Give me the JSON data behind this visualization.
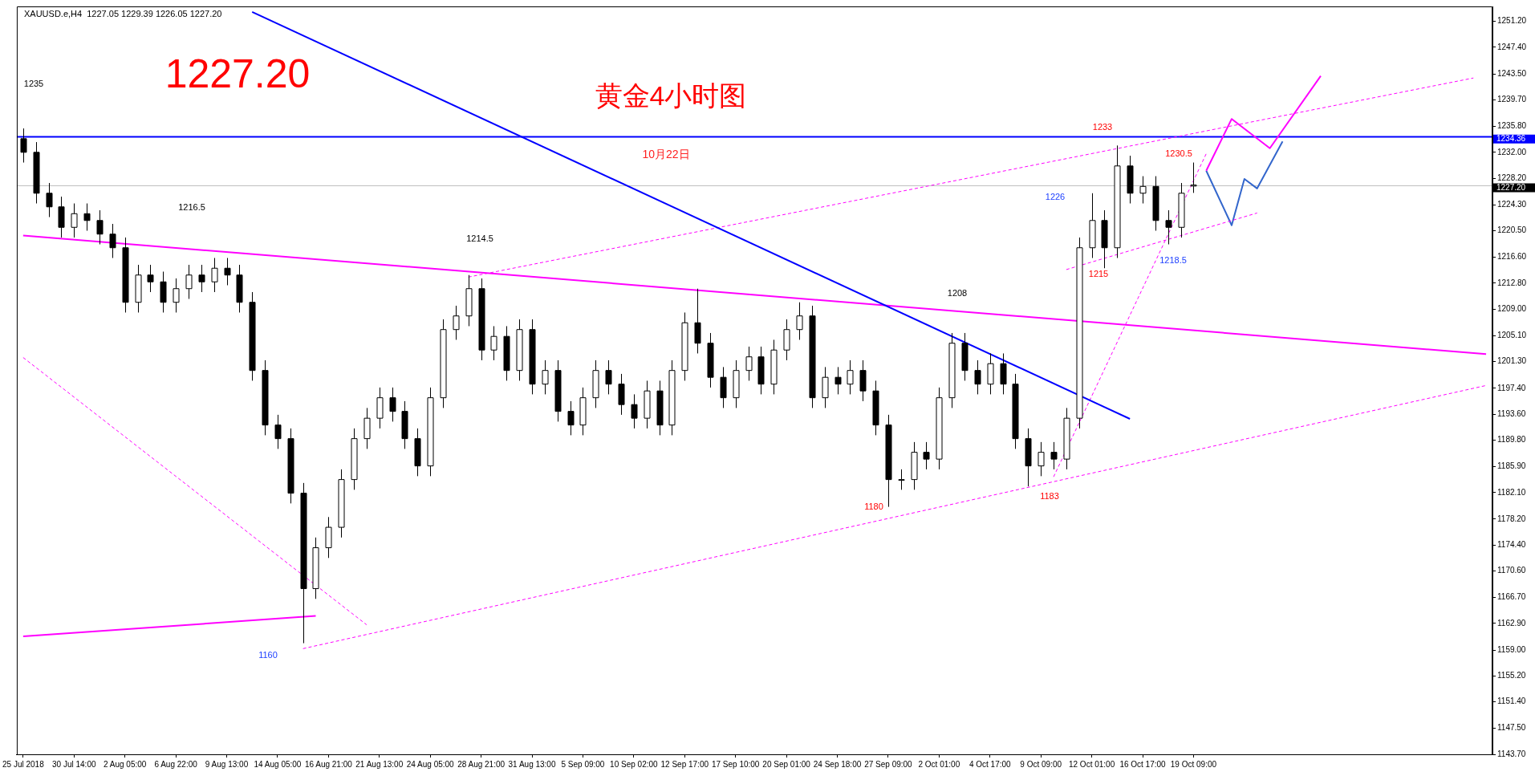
{
  "chart_data": {
    "type": "candlestick",
    "title": "黄金4小时图",
    "color": "#000000",
    "colors": [
      "#000000",
      "#000000",
      "#000000",
      "#000000",
      "#ffffff",
      "#000000",
      "#000000",
      "#000000",
      "#000000",
      "#ffffff",
      "#000000",
      "#000000",
      "#ffffff",
      "#ffffff",
      "#000000",
      "#ffffff",
      "#000000",
      "#000000",
      "#000000",
      "#000000",
      "#000000",
      "#000000",
      "#000000",
      "#ffffff",
      "#ffffff",
      "#ffffff",
      "#ffffff",
      "#ffffff",
      "#ffffff",
      "#000000",
      "#000000",
      "#000000",
      "#ffffff",
      "#ffffff",
      "#ffffff",
      "#ffffff",
      "#000000",
      "#ffffff",
      "#000000",
      "#ffffff",
      "#000000",
      "#ffffff",
      "#000000",
      "#000000",
      "#ffffff",
      "#ffffff",
      "#000000",
      "#000000",
      "#000000",
      "#ffffff",
      "#000000",
      "#ffffff",
      "#ffffff",
      "#000000",
      "#000000",
      "#000000",
      "#ffffff",
      "#ffffff",
      "#000000",
      "#ffffff",
      "#ffffff",
      "#ffffff",
      "#000000",
      "#ffffff",
      "#000000",
      "#ffffff",
      "#000000",
      "#000000",
      "#000000",
      "#ffffff",
      "#ffffff",
      "#000000",
      "#ffffff",
      "#ffffff",
      "#000000",
      "#000000",
      "#ffffff",
      "#000000",
      "#000000",
      "#000000",
      "#ffffff",
      "#000000",
      "#ffffff",
      "#ffffff",
      "#ffffff",
      "#000000",
      "#ffffff",
      "#000000",
      "#ffffff",
      "#000000",
      "#000000",
      "#ffffff",
      "#ffffff",
      null,
      null,
      null,
      null,
      null,
      null,
      null,
      null,
      null,
      null,
      null,
      null,
      null,
      null,
      null,
      null,
      null,
      null,
      null,
      null,
      null,
      null,
      null
    ],
    "categories": [
      "25 Jul 2018",
      null,
      null,
      null,
      "30 Jul 14:00",
      null,
      null,
      null,
      "2 Aug 05:00",
      null,
      null,
      null,
      "6 Aug 22:00",
      null,
      null,
      null,
      "9 Aug 13:00",
      null,
      null,
      null,
      "14 Aug 05:00",
      null,
      null,
      null,
      "16 Aug 21:00",
      null,
      null,
      null,
      "21 Aug 13:00",
      null,
      null,
      null,
      "24 Aug 05:00",
      null,
      null,
      null,
      "28 Aug 21:00",
      null,
      null,
      null,
      "31 Aug 13:00",
      null,
      null,
      null,
      "5 Sep 09:00",
      null,
      null,
      null,
      "10 Sep 02:00",
      null,
      null,
      null,
      "12 Sep 17:00",
      null,
      null,
      null,
      "17 Sep 10:00",
      null,
      null,
      null,
      "20 Sep 01:00",
      null,
      null,
      null,
      "24 Sep 18:00",
      null,
      null,
      null,
      "27 Sep 09:00",
      null,
      null,
      null,
      "2 Oct 01:00",
      null,
      null,
      null,
      "4 Oct 17:00",
      null,
      null,
      null,
      "9 Oct 09:00",
      null,
      null,
      null,
      "12 Oct 01:00",
      null,
      null,
      null,
      "16 Oct 17:00",
      null,
      null,
      null,
      "19 Oct 09:00",
      null,
      null,
      null,
      null,
      null,
      null,
      null,
      null,
      null,
      null,
      null,
      null,
      null,
      null,
      null,
      null,
      null,
      null,
      null,
      null,
      null,
      null,
      null
    ],
    "ohlc": [
      [
        1234,
        1235.5,
        1230.5,
        1232
      ],
      [
        1232,
        1233.5,
        1224.5,
        1226
      ],
      [
        1226,
        1227.5,
        1222.5,
        1224
      ],
      [
        1224,
        1225.5,
        1219.5,
        1221
      ],
      [
        1221,
        1224.5,
        1219.5,
        1223
      ],
      [
        1223,
        1224.5,
        1220.5,
        1222
      ],
      [
        1222,
        1223.5,
        1218.5,
        1220
      ],
      [
        1220,
        1221.5,
        1216.5,
        1218
      ],
      [
        1218,
        1219.5,
        1208.5,
        1210
      ],
      [
        1210,
        1215.5,
        1208.5,
        1214
      ],
      [
        1214,
        1215.5,
        1211.5,
        1213
      ],
      [
        1213,
        1214.5,
        1208.5,
        1210
      ],
      [
        1210,
        1213.5,
        1208.5,
        1212
      ],
      [
        1212,
        1215.5,
        1210.5,
        1214
      ],
      [
        1214,
        1215.5,
        1211.5,
        1213
      ],
      [
        1213,
        1216.5,
        1211.5,
        1215
      ],
      [
        1215,
        1216.5,
        1212.5,
        1214
      ],
      [
        1214,
        1215.5,
        1208.5,
        1210
      ],
      [
        1210,
        1211.5,
        1198.5,
        1200
      ],
      [
        1200,
        1201.5,
        1190.5,
        1192
      ],
      [
        1192,
        1193.5,
        1188.5,
        1190
      ],
      [
        1190,
        1191.5,
        1180.5,
        1182
      ],
      [
        1182,
        1183.5,
        1160,
        1168
      ],
      [
        1168,
        1175.5,
        1166.5,
        1174
      ],
      [
        1174,
        1178.5,
        1172.5,
        1177
      ],
      [
        1177,
        1185.5,
        1175.5,
        1184
      ],
      [
        1184,
        1191.5,
        1182.5,
        1190
      ],
      [
        1190,
        1194.5,
        1188.5,
        1193
      ],
      [
        1193,
        1197.5,
        1191.5,
        1196
      ],
      [
        1196,
        1197.5,
        1192.5,
        1194
      ],
      [
        1194,
        1195.5,
        1188.5,
        1190
      ],
      [
        1190,
        1191.5,
        1184.5,
        1186
      ],
      [
        1186,
        1197.5,
        1184.5,
        1196
      ],
      [
        1196,
        1207.5,
        1194.5,
        1206
      ],
      [
        1206,
        1209.5,
        1204.5,
        1208
      ],
      [
        1208,
        1214,
        1206.5,
        1212
      ],
      [
        1212,
        1213.5,
        1201.5,
        1203
      ],
      [
        1203,
        1206.5,
        1201.5,
        1205
      ],
      [
        1205,
        1206.5,
        1198.5,
        1200
      ],
      [
        1200,
        1207.5,
        1198.5,
        1206
      ],
      [
        1206,
        1207.5,
        1196.5,
        1198
      ],
      [
        1198,
        1201.5,
        1196.5,
        1200
      ],
      [
        1200,
        1201.5,
        1192.5,
        1194
      ],
      [
        1194,
        1195.5,
        1190.5,
        1192
      ],
      [
        1192,
        1197.5,
        1190.5,
        1196
      ],
      [
        1196,
        1201.5,
        1194.5,
        1200
      ],
      [
        1200,
        1201.5,
        1196.5,
        1198
      ],
      [
        1198,
        1199.5,
        1193.5,
        1195
      ],
      [
        1195,
        1196.5,
        1191.5,
        1193
      ],
      [
        1193,
        1198.5,
        1191.5,
        1197
      ],
      [
        1197,
        1198.5,
        1190.5,
        1192
      ],
      [
        1192,
        1201.5,
        1190.5,
        1200
      ],
      [
        1200,
        1208.5,
        1198.5,
        1207
      ],
      [
        1207,
        1212,
        1202.5,
        1204
      ],
      [
        1204,
        1205.5,
        1197.5,
        1199
      ],
      [
        1199,
        1200.5,
        1194.5,
        1196
      ],
      [
        1196,
        1201.5,
        1194.5,
        1200
      ],
      [
        1200,
        1203.5,
        1198.5,
        1202
      ],
      [
        1202,
        1203.5,
        1196.5,
        1198
      ],
      [
        1198,
        1204.5,
        1196.5,
        1203
      ],
      [
        1203,
        1207.5,
        1201.5,
        1206
      ],
      [
        1206,
        1210,
        1204.5,
        1208
      ],
      [
        1208,
        1209.5,
        1194.5,
        1196
      ],
      [
        1196,
        1200.5,
        1194.5,
        1199
      ],
      [
        1199,
        1200.5,
        1196.5,
        1198
      ],
      [
        1198,
        1201.5,
        1196.5,
        1200
      ],
      [
        1200,
        1201.5,
        1195.5,
        1197
      ],
      [
        1197,
        1198.5,
        1190.5,
        1192
      ],
      [
        1192,
        1193.5,
        1180,
        1184
      ],
      [
        1184,
        1185.5,
        1182.5,
        1184
      ],
      [
        1184,
        1189.5,
        1182.5,
        1188
      ],
      [
        1188,
        1189.5,
        1185.5,
        1187
      ],
      [
        1187,
        1197.5,
        1185.5,
        1196
      ],
      [
        1196,
        1205.5,
        1194.5,
        1204
      ],
      [
        1204,
        1205.5,
        1198.5,
        1200
      ],
      [
        1200,
        1201.5,
        1196.5,
        1198
      ],
      [
        1198,
        1202.5,
        1196.5,
        1201
      ],
      [
        1201,
        1202.5,
        1196.5,
        1198
      ],
      [
        1198,
        1199.5,
        1188.5,
        1190
      ],
      [
        1190,
        1191.5,
        1183,
        1186
      ],
      [
        1186,
        1189.5,
        1184.5,
        1188
      ],
      [
        1188,
        1189.5,
        1185.5,
        1187
      ],
      [
        1187,
        1194.5,
        1185.5,
        1193
      ],
      [
        1193,
        1219.5,
        1191.5,
        1218
      ],
      [
        1218,
        1226,
        1216.5,
        1222
      ],
      [
        1222,
        1223.5,
        1215,
        1218
      ],
      [
        1218,
        1233,
        1216.5,
        1230
      ],
      [
        1230,
        1231.5,
        1224.5,
        1226
      ],
      [
        1226,
        1228.5,
        1224.5,
        1227
      ],
      [
        1227,
        1228.5,
        1220.5,
        1222
      ],
      [
        1222,
        1223.5,
        1218.5,
        1221
      ],
      [
        1221,
        1227.5,
        1219.5,
        1226
      ],
      [
        1227.05,
        1230.5,
        1226.05,
        1227.2
      ],
      null,
      null,
      null,
      null,
      null,
      null,
      null,
      null,
      null,
      null,
      null,
      null,
      null,
      null,
      null,
      null,
      null,
      null,
      null,
      null,
      null,
      null,
      null
    ],
    "series": [
      {
        "type": "line",
        "color": "#0000ff",
        "line_style": "solid",
        "values": [
          null,
          null,
          null,
          null,
          null,
          null,
          null,
          null,
          null,
          null,
          null,
          null,
          null,
          null,
          null,
          null,
          null,
          null,
          1252.6,
          null,
          null,
          null,
          null,
          null,
          null,
          null,
          null,
          null,
          null,
          null,
          null,
          null,
          null,
          null,
          null,
          null,
          null,
          null,
          null,
          null,
          null,
          null,
          null,
          null,
          null,
          null,
          null,
          null,
          null,
          null,
          null,
          null,
          null,
          null,
          null,
          null,
          null,
          null,
          null,
          null,
          null,
          null,
          null,
          null,
          null,
          null,
          null,
          null,
          null,
          null,
          null,
          null,
          null,
          null,
          null,
          null,
          null,
          null,
          null,
          null,
          null,
          null,
          null,
          null,
          null,
          null,
          null,
          1192.9,
          null,
          null,
          null,
          null,
          null,
          null,
          null,
          null,
          null,
          null,
          null,
          null,
          null,
          null,
          null,
          null,
          null,
          null,
          null,
          null,
          null,
          null,
          null,
          null,
          null,
          null,
          null,
          null
        ]
      },
      {
        "type": "line",
        "color": "#ff00ff",
        "line_style": "solid",
        "values": [
          1219.8,
          null,
          null,
          null,
          null,
          null,
          null,
          null,
          null,
          null,
          null,
          null,
          null,
          null,
          null,
          null,
          null,
          null,
          null,
          null,
          null,
          null,
          null,
          null,
          null,
          null,
          null,
          null,
          null,
          null,
          null,
          null,
          null,
          null,
          null,
          null,
          null,
          null,
          null,
          null,
          null,
          null,
          null,
          null,
          null,
          null,
          null,
          null,
          null,
          null,
          null,
          null,
          null,
          null,
          null,
          null,
          null,
          null,
          null,
          null,
          null,
          null,
          null,
          null,
          null,
          null,
          null,
          null,
          null,
          null,
          null,
          null,
          null,
          null,
          null,
          null,
          null,
          null,
          null,
          null,
          null,
          null,
          null,
          null,
          null,
          null,
          null,
          null,
          null,
          null,
          null,
          null,
          null,
          null,
          null,
          null,
          null,
          null,
          null,
          null,
          null,
          null,
          null,
          null,
          null,
          null,
          null,
          null,
          null,
          null,
          null,
          null,
          null,
          null,
          null,
          1202.4
        ]
      },
      {
        "type": "line",
        "color": "#ff00ff",
        "line_style": "solid",
        "values": [
          1161.0,
          null,
          null,
          null,
          null,
          null,
          null,
          null,
          null,
          null,
          null,
          null,
          null,
          null,
          null,
          null,
          null,
          null,
          null,
          null,
          null,
          null,
          null,
          1164.0,
          null,
          null,
          null,
          null,
          null,
          null,
          null,
          null,
          null,
          null,
          null,
          null,
          null,
          null,
          null,
          null,
          null,
          null,
          null,
          null,
          null,
          null,
          null,
          null,
          null,
          null,
          null,
          null,
          null,
          null,
          null,
          null,
          null,
          null,
          null,
          null,
          null,
          null,
          null,
          null,
          null,
          null,
          null,
          null,
          null,
          null,
          null,
          null,
          null,
          null,
          null,
          null,
          null,
          null,
          null,
          null,
          null,
          null,
          null,
          null,
          null,
          null,
          null,
          null,
          null,
          null,
          null,
          null,
          null,
          null,
          null,
          null,
          null,
          null,
          null,
          null,
          null,
          null,
          null,
          null,
          null,
          null,
          null,
          null,
          null,
          null,
          null,
          null,
          null,
          null,
          null,
          null
        ]
      },
      {
        "type": "line",
        "color": "#ff00ff",
        "line_style": "dashed",
        "values": [
          null,
          null,
          null,
          null,
          null,
          null,
          null,
          null,
          null,
          null,
          null,
          null,
          null,
          null,
          null,
          null,
          null,
          null,
          null,
          null,
          null,
          null,
          1159.2,
          null,
          null,
          null,
          null,
          null,
          null,
          null,
          null,
          null,
          null,
          null,
          null,
          null,
          null,
          null,
          null,
          null,
          null,
          null,
          null,
          null,
          null,
          null,
          null,
          null,
          null,
          null,
          null,
          null,
          null,
          null,
          null,
          null,
          null,
          null,
          null,
          null,
          null,
          null,
          null,
          null,
          null,
          null,
          null,
          null,
          null,
          null,
          null,
          null,
          null,
          null,
          null,
          null,
          null,
          null,
          null,
          null,
          null,
          null,
          null,
          null,
          null,
          null,
          null,
          null,
          null,
          null,
          null,
          null,
          null,
          null,
          null,
          null,
          null,
          null,
          null,
          null,
          null,
          null,
          null,
          null,
          null,
          null,
          null,
          null,
          null,
          null,
          null,
          null,
          null,
          null,
          null,
          1197.8
        ]
      },
      {
        "type": "line",
        "color": "#ff00ff",
        "line_style": "dashed",
        "values": [
          null,
          null,
          null,
          null,
          null,
          null,
          null,
          null,
          null,
          null,
          null,
          null,
          null,
          null,
          null,
          null,
          null,
          null,
          null,
          null,
          null,
          null,
          null,
          null,
          null,
          null,
          null,
          null,
          null,
          null,
          null,
          null,
          null,
          null,
          null,
          1213.7,
          null,
          null,
          null,
          null,
          null,
          null,
          null,
          null,
          null,
          null,
          null,
          null,
          null,
          null,
          null,
          null,
          null,
          null,
          null,
          null,
          null,
          null,
          null,
          null,
          null,
          null,
          null,
          null,
          null,
          null,
          null,
          null,
          null,
          null,
          null,
          null,
          null,
          null,
          null,
          null,
          null,
          null,
          null,
          null,
          null,
          null,
          null,
          null,
          null,
          null,
          null,
          null,
          null,
          null,
          null,
          null,
          null,
          null,
          null,
          null,
          null,
          null,
          null,
          null,
          null,
          null,
          null,
          null,
          null,
          null,
          null,
          null,
          null,
          null,
          null,
          null,
          null,
          null,
          1242.9,
          null
        ]
      },
      {
        "type": "line",
        "color": "#ff00ff",
        "line_style": "dashed",
        "values": [
          1201.9,
          null,
          null,
          null,
          null,
          null,
          null,
          null,
          null,
          null,
          null,
          null,
          null,
          null,
          null,
          null,
          null,
          null,
          null,
          null,
          null,
          null,
          null,
          null,
          null,
          null,
          null,
          1162.7,
          null,
          null,
          null,
          null,
          null,
          null,
          null,
          null,
          null,
          null,
          null,
          null,
          null,
          null,
          null,
          null,
          null,
          null,
          null,
          null,
          null,
          null,
          null,
          null,
          null,
          null,
          null,
          null,
          null,
          null,
          null,
          null,
          null,
          null,
          null,
          null,
          null,
          null,
          null,
          null,
          null,
          null,
          null,
          null,
          null,
          null,
          null,
          null,
          null,
          null,
          null,
          null,
          null,
          null,
          null,
          null,
          null,
          null,
          null,
          null,
          null,
          null,
          null,
          null,
          null,
          null,
          null,
          null,
          null,
          null,
          null,
          null,
          null,
          null,
          null,
          null,
          null,
          null,
          null,
          null,
          null,
          null,
          null,
          null,
          null,
          null,
          null,
          null
        ]
      },
      {
        "type": "line",
        "color": "#ff00ff",
        "line_style": "dashed",
        "values": [
          null,
          null,
          null,
          null,
          null,
          null,
          null,
          null,
          null,
          null,
          null,
          null,
          null,
          null,
          null,
          null,
          null,
          null,
          null,
          null,
          null,
          null,
          null,
          null,
          null,
          null,
          null,
          null,
          null,
          null,
          null,
          null,
          null,
          null,
          null,
          null,
          null,
          null,
          null,
          null,
          null,
          null,
          null,
          null,
          null,
          null,
          null,
          null,
          null,
          null,
          null,
          null,
          null,
          null,
          null,
          null,
          null,
          null,
          null,
          null,
          null,
          null,
          null,
          null,
          null,
          null,
          null,
          null,
          null,
          null,
          null,
          null,
          null,
          null,
          null,
          null,
          null,
          null,
          null,
          null,
          null,
          1184.4,
          null,
          null,
          null,
          null,
          null,
          null,
          null,
          null,
          null,
          null,
          null,
          1231.8,
          null,
          null,
          null,
          null,
          null,
          null,
          null,
          null,
          null,
          null,
          null,
          null,
          null,
          null,
          null,
          null,
          null,
          null,
          null,
          null,
          null,
          null
        ]
      },
      {
        "type": "line",
        "color": "#ff00ff",
        "line_style": "dashed",
        "values": [
          null,
          null,
          null,
          null,
          null,
          null,
          null,
          null,
          null,
          null,
          null,
          null,
          null,
          null,
          null,
          null,
          null,
          null,
          null,
          null,
          null,
          null,
          null,
          null,
          null,
          null,
          null,
          null,
          null,
          null,
          null,
          null,
          null,
          null,
          null,
          null,
          null,
          null,
          null,
          null,
          null,
          null,
          null,
          null,
          null,
          null,
          null,
          null,
          null,
          null,
          null,
          null,
          null,
          null,
          null,
          null,
          null,
          null,
          null,
          null,
          null,
          null,
          null,
          null,
          null,
          null,
          null,
          null,
          null,
          null,
          null,
          null,
          null,
          null,
          null,
          null,
          null,
          null,
          null,
          null,
          null,
          null,
          1214.8,
          null,
          null,
          null,
          null,
          null,
          null,
          null,
          null,
          null,
          null,
          null,
          null,
          null,
          null,
          1223.1,
          null,
          null,
          null,
          null,
          null,
          null,
          null,
          null,
          null,
          null,
          null,
          null,
          null,
          null,
          null,
          null,
          null,
          null
        ]
      },
      {
        "type": "line",
        "color": "#ff00ff",
        "line_style": "solid",
        "values": [
          null,
          null,
          null,
          null,
          null,
          null,
          null,
          null,
          null,
          null,
          null,
          null,
          null,
          null,
          null,
          null,
          null,
          null,
          null,
          null,
          null,
          null,
          null,
          null,
          null,
          null,
          null,
          null,
          null,
          null,
          null,
          null,
          null,
          null,
          null,
          null,
          null,
          null,
          null,
          null,
          null,
          null,
          null,
          null,
          null,
          null,
          null,
          null,
          null,
          null,
          null,
          null,
          null,
          null,
          null,
          null,
          null,
          null,
          null,
          null,
          null,
          null,
          null,
          null,
          null,
          null,
          null,
          null,
          null,
          null,
          null,
          null,
          null,
          null,
          null,
          null,
          null,
          null,
          null,
          null,
          null,
          null,
          null,
          null,
          null,
          null,
          null,
          null,
          null,
          null,
          null,
          null,
          null,
          1229.3,
          null,
          1236.9,
          null,
          null,
          1232.6,
          null,
          null,
          null,
          1243.2,
          null,
          null,
          null,
          null,
          null,
          null,
          null,
          null,
          null,
          null,
          null,
          null,
          null
        ]
      },
      {
        "type": "line",
        "color": "#3366cc",
        "line_style": "solid",
        "values": [
          null,
          null,
          null,
          null,
          null,
          null,
          null,
          null,
          null,
          null,
          null,
          null,
          null,
          null,
          null,
          null,
          null,
          null,
          null,
          null,
          null,
          null,
          null,
          null,
          null,
          null,
          null,
          null,
          null,
          null,
          null,
          null,
          null,
          null,
          null,
          null,
          null,
          null,
          null,
          null,
          null,
          null,
          null,
          null,
          null,
          null,
          null,
          null,
          null,
          null,
          null,
          null,
          null,
          null,
          null,
          null,
          null,
          null,
          null,
          null,
          null,
          null,
          null,
          null,
          null,
          null,
          null,
          null,
          null,
          null,
          null,
          null,
          null,
          null,
          null,
          null,
          null,
          null,
          null,
          null,
          null,
          null,
          null,
          null,
          null,
          null,
          null,
          null,
          null,
          null,
          null,
          null,
          null,
          1229.3,
          null,
          1221.3,
          1228.1,
          1226.7,
          null,
          1233.6,
          null,
          null,
          null,
          null,
          null,
          null,
          null,
          null,
          null,
          null,
          null,
          null,
          null,
          null,
          null,
          null
        ]
      }
    ],
    "ylim": [
      1143.7,
      1253.4
    ],
    "yticks": [
      {
        "value": 1251.2,
        "label": "1251.20"
      },
      {
        "value": 1247.4,
        "label": "1247.40"
      },
      {
        "value": 1243.5,
        "label": "1243.50"
      },
      {
        "value": 1239.7,
        "label": "1239.70"
      },
      {
        "value": 1235.8,
        "label": "1235.80"
      },
      {
        "value": 1232.0,
        "label": "1232.00"
      },
      {
        "value": 1228.2,
        "label": "1228.20"
      },
      {
        "value": 1224.3,
        "label": "1224.30"
      },
      {
        "value": 1220.5,
        "label": "1220.50"
      },
      {
        "value": 1216.6,
        "label": "1216.60"
      },
      {
        "value": 1212.8,
        "label": "1212.80"
      },
      {
        "value": 1209.0,
        "label": "1209.00"
      },
      {
        "value": 1205.1,
        "label": "1205.10"
      },
      {
        "value": 1201.3,
        "label": "1201.30"
      },
      {
        "value": 1197.4,
        "label": "1197.40"
      },
      {
        "value": 1193.6,
        "label": "1193.60"
      },
      {
        "value": 1189.8,
        "label": "1189.80"
      },
      {
        "value": 1185.9,
        "label": "1185.90"
      },
      {
        "value": 1182.1,
        "label": "1182.10"
      },
      {
        "value": 1178.2,
        "label": "1178.20"
      },
      {
        "value": 1174.4,
        "label": "1174.40"
      },
      {
        "value": 1170.6,
        "label": "1170.60"
      },
      {
        "value": 1166.7,
        "label": "1166.70"
      },
      {
        "value": 1162.9,
        "label": "1162.90"
      },
      {
        "value": 1159.0,
        "label": "1159.00"
      },
      {
        "value": 1155.2,
        "label": "1155.20"
      },
      {
        "value": 1151.4,
        "label": "1151.40"
      },
      {
        "value": 1147.5,
        "label": "1147.50"
      },
      {
        "value": 1143.7,
        "label": "1143.70"
      }
    ],
    "ref_lines": [
      {
        "axis": "y",
        "value": 1234.36,
        "label": "1234.36",
        "color": "#0000ff"
      },
      {
        "axis": "y",
        "value": 1227.2,
        "label": "1227.20",
        "color": "#c0c0c0"
      }
    ],
    "annotations": [
      "XAUUSD.e,H4  1227.05 1229.39 1226.05 1227.20",
      "1227.20",
      "10月22日",
      "1235",
      "1216.5",
      "1214.5",
      "1208",
      "1233",
      "1230.5",
      "1226",
      "1215",
      "1218.5",
      "1160",
      "1180",
      "1183"
    ],
    "grid": false,
    "legend": false
  }
}
